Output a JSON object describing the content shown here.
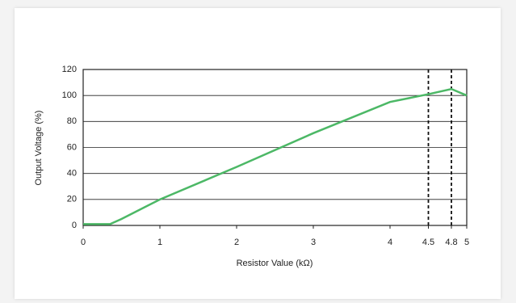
{
  "chart_data": {
    "type": "line",
    "xlabel": "Resistor Value (kΩ)",
    "ylabel": "Output Voltage (%)",
    "x": [
      0,
      0.35,
      0.5,
      1,
      2,
      3,
      4,
      4.5,
      4.8,
      5
    ],
    "values": [
      1,
      1,
      5,
      20,
      45,
      71,
      95,
      101,
      105,
      100
    ],
    "color": "#4cb866",
    "xlim": [
      0,
      5
    ],
    "xticks": [
      0,
      1,
      2,
      3,
      4,
      4.5,
      4.8,
      5
    ],
    "ylim": [
      0,
      120
    ],
    "yticks": [
      0,
      20,
      40,
      60,
      80,
      100,
      120
    ],
    "grid": true,
    "vlines": [
      4.5,
      4.8
    ]
  }
}
